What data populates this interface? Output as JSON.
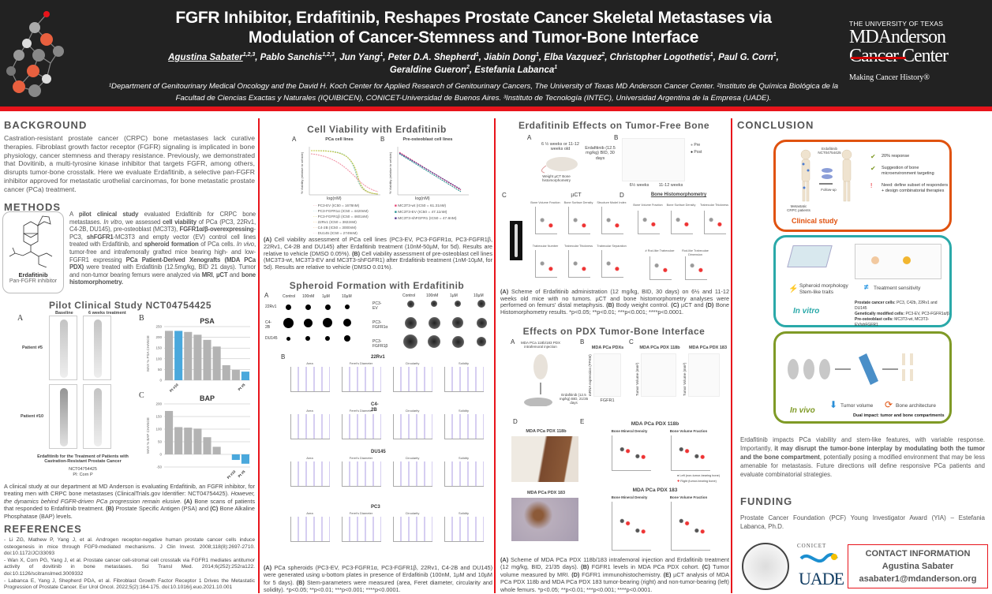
{
  "header": {
    "title_line1": "FGFR Inhibitor, Erdafitinib, Reshapes Prostate Cancer Skeletal Metastases via",
    "title_line2": "Modulation of Cancer-Stemness and Tumor-Bone Interface",
    "authors_line1": [
      {
        "name": "Agustina Sabater",
        "sup": "1,2,3"
      },
      {
        "name": "Pablo Sanchis",
        "sup": "1,2,3"
      },
      {
        "name": "Jun Yang",
        "sup": "1"
      },
      {
        "name": "Peter D.A. Shepherd",
        "sup": "1"
      },
      {
        "name": "Jiabin Dong",
        "sup": "1"
      },
      {
        "name": "Elba Vazquez",
        "sup": "2"
      },
      {
        "name": "Christopher Logothetis",
        "sup": "1"
      },
      {
        "name": "Paul G. Corn",
        "sup": "1"
      }
    ],
    "authors_line2": [
      {
        "name": "Geraldine Gueron",
        "sup": "2"
      },
      {
        "name": "Estefania Labanca",
        "sup": "1"
      }
    ],
    "affiliations": "¹Department of Genitourinary Medical Oncology and the David H. Koch Center for Applied Research of Genitourinary Cancers, The University of Texas MD Anderson Cancer Center. ²Instituto de Química Biológica de la Facultad de Ciencias Exactas y Naturales (IQUIBICEN), CONICET-Universidad de Buenos Aires. ³Instituto de Tecnología (INTEC), Universidad Argentina de la Empresa (UADE).",
    "logo": {
      "line1": "THE UNIVERSITY OF TEXAS",
      "line2": "MDAnderson",
      "line3": "Cancer Center",
      "tagline": "Making Cancer History®"
    },
    "accent_color": "#e8141b"
  },
  "background": {
    "heading": "BACKGROUND",
    "text": "Castration-resistant prostate cancer (CRPC) bone metastases lack curative therapies. Fibroblast growth factor receptor (FGFR) signaling is implicated in bone physiology, cancer stemness and therapy resistance. Previously, we demonstrated that Dovitinib, a multi-tyrosine kinase inhibitor that targets FGFR, among others, disrupts tumor-bone crosstalk. Here we evaluate Erdafitinib, a selective pan-FGFR inhibitor approved for metastatic urothelial carcinomas, for bone metastatic prostate cancer (PCa) treatment."
  },
  "methods": {
    "heading": "METHODS",
    "drug_name": "Erdafitinib",
    "drug_class": "Pan-FGFR inhibitor",
    "text_html": "A <b>pilot clinical study</b> evaluated Erdafitinib for CRPC bone metastases. <i>In vitro</i>, we assessed <b>cell viability</b> of PCa (PC3, 22Rv1, C4-2B, DU145), pre-osteoblast (MC3T3), <b>FGFR1α/β-overexpressing</b>-PC3, <b>shFGFR1</b>-MC3T3 and empty vector (EV) control cell lines treated with Erdafitinib, and <b>spheroid formation</b> of PCa cells. <i>In vivo</i>, tumor-free and intrafemorally grafted mice bearing high- and low-FGFR1 expressing <b>PCa Patient-Derived Xenografts (MDA PCa PDX)</b> were treated with Erdafitinib (12.5mg/kg, BID 21 days). Tumor and non-tumor bearing femurs were analyzed via <b>MRI</b>, <b>µCT</b> and <b>bone histomorphometry.</b>"
  },
  "pilot": {
    "title": "Pilot Clinical Study NCT04754425",
    "panel_a": "A",
    "panel_b": "B",
    "panel_c": "C",
    "col_baseline": "Baseline",
    "col_treat": "6 weeks treatment",
    "patient5": "Patient #5",
    "patient10": "Patient #10",
    "trial_title": "Erdafitinib for the Treatment of Patients with Castration-Resistant Prostate Cancer",
    "trial_id": "NCT04754425",
    "pi": "PI: Corn P",
    "caption_html": "A clinical study at our department at MD Anderson is evaluating Erdafitinib, an FGFR inhibitor, for treating men with CRPC bone metastases (ClinicalTrials.gov Identifier: NCT04754425). <i>However, the dynamics behind FGFR-driven PCa progression remain elusive.</i> <b>(A)</b> Bone scans of patients that responded to Erdafitinib treatment. <b>(B)</b> Prostate Specific Antigen (PSA) and <b>(C)</b> Bone Alkaline Phosphatase (BAP) levels."
  },
  "chart_data": [
    {
      "type": "bar",
      "title": "PSA",
      "ylabel": "MAX % PSA CHANGE",
      "ylim": [
        0,
        250
      ],
      "yticks": [
        0,
        50,
        100,
        150,
        200,
        250
      ],
      "grid": true,
      "values": [
        230,
        230,
        225,
        212,
        188,
        157,
        70,
        48,
        40
      ],
      "highlight": [
        false,
        true,
        false,
        false,
        false,
        false,
        false,
        false,
        true
      ],
      "labels": [
        "",
        "Pt #10",
        "",
        "",
        "",
        "",
        "",
        "",
        "Pt #5"
      ],
      "colors": {
        "default": "#b3b3b3",
        "highlight": "#4aa8dc"
      }
    },
    {
      "type": "bar",
      "title": "BAP",
      "ylabel": "MAX % BAP CHANGE",
      "ylim": [
        -50,
        200
      ],
      "yticks": [
        -50,
        0,
        50,
        100,
        150,
        200
      ],
      "grid": true,
      "values": [
        172,
        108,
        106,
        102,
        68,
        30,
        0,
        -22,
        -37
      ],
      "highlight": [
        false,
        false,
        false,
        false,
        false,
        false,
        false,
        true,
        true
      ],
      "labels": [
        "",
        "",
        "",
        "",
        "",
        "",
        "",
        "Pt #10",
        "Pt #5"
      ],
      "colors": {
        "default": "#b3b3b3",
        "highlight": "#4aa8dc"
      }
    }
  ],
  "references": {
    "heading": "REFERENCES",
    "items": [
      "- Li ZG, Mathew P, Yang J, et al. Androgen receptor-negative human prostate cancer cells induce osteogenesis in mice through FGF9-mediated mechanisms. J Clin Invest. 2008;118(8):2697-2710. doi:10.1172/JCI33093",
      "- Wan X, Corn PG, Yang J, et al. Prostate cancer cell-stromal cell crosstalk via FGFR1 mediates antitumor activity of dovitinib in bone metastases. Sci Transl Med. 2014;6(252):252ra122. doi:10.1126/scitranslmed.3009332",
      "- Labanca E, Yang J, Shepherd PDA, et al. Fibroblast Growth Factor Receptor 1 Drives the Metastatic Progression of Prostate Cancer. Eur Urol Oncol. 2022;5(2):164-175. doi:10.1016/j.euo.2021.10.001"
    ]
  },
  "viability": {
    "title": "Cell Viability with Erdafitinib",
    "a": "A",
    "b": "B",
    "a_title": "PCa cell lines",
    "b_title": "Pre-osteoblast cell lines",
    "ylabel": "% Viability (relative to vehicle)",
    "xlabel": "log(nM)",
    "legend_a": [
      "PC3-EV (IC50 = 1678nM)",
      "PC3-FGFR1α (IC50 = 4420nM)",
      "PC3-FGFR1β (IC50 = 4601nM)",
      "22Rv1 (IC50 = 3822nM)",
      "C4-2B (IC50 = 3000nM)",
      "DU145 (IC50 = 2749nM)"
    ],
    "legend_b": [
      "MC3T3-wt (IC50 = 61.31nM)",
      "MC3T3-EV (IC50 = 47.11nM)",
      "MC3T3-shFGFR1 (IC50 = 47.8nM)"
    ],
    "caption_html": "<b>(A)</b> Cell viability assessment of PCa cell lines (PC3-EV, PC3-FGFR1α, PC3-FGFR1β, 22Rv1, C4-2B and DU145) after Erdafitinib treatment (10nM-50µM, for 5d). Results are relative to vehicle (DMSO 0.05%). <b>(B)</b> Cell viability assessment of pre-osteoblast cell lines (MC3T3-wt, MC3T3-EV and MC3T3-shFGFR1) after Erdafitinib treatment (1nM-10µM, for 5d). Results are relative to vehicle (DMSO 0.01%)."
  },
  "spheroid": {
    "title": "Spheroid Formation with Erdafitinib",
    "a": "A",
    "b": "B",
    "doses": [
      "Control",
      "100nM",
      "1µM",
      "10µM"
    ],
    "rows_left": [
      "22Rv1",
      "C4-2B",
      "DU145"
    ],
    "rows_right": [
      "PC3-EV",
      "PC3-FGFR1α",
      "PC3-FGFR1β"
    ],
    "b_groups": [
      "22Rv1",
      "C4-2B",
      "DU145",
      "PC3"
    ],
    "b_params": [
      "Area",
      "Feret's Diameter",
      "Circularity",
      "Solidity"
    ],
    "caption_html": "<b>(A)</b> PCa spheroids (PC3-EV, PC3-FGFR1α, PC3-FGFR1β, 22Rv1, C4-2B and DU145) were generated using u-bottom plates in presence of Erdafitinib (100nM, 1µM and 10µM for 5 days). <b>(B)</b> Stem-parameters were measured (area, Feret diameter, circularity and solidity). *p&lt;0.05; **p&lt;0.01; ***p&lt;0.001; ****p&lt;0.0001."
  },
  "tumorfree": {
    "title": "Erdafitinib Effects on Tumor-Free Bone",
    "a": "A",
    "b": "B",
    "c": "C",
    "d": "D",
    "mice_age": "6 ½ weeks or 11-12 weeks old",
    "treatment": "Erdafitinib (12.5 mg/kg) BID, 30 days",
    "measures": "Weight µCT Bone histomorphometry",
    "b_legend": [
      "Pre",
      "Post"
    ],
    "b_groups": [
      "6½ weeks",
      "11-12 weeks"
    ],
    "c_title": "µCT",
    "d_title": "Bone Histomorphometry",
    "c_params": [
      "Bone Volume Fraction",
      "Bone Surface Density",
      "Structure Model Index",
      "Trabecular Number",
      "Trabecular Thickness",
      "Trabecular Separation"
    ],
    "d_params": [
      "Bone Volume Fraction",
      "Bone Surface Density",
      "Trabecular Thickness",
      "# Rod-like Trabeculae",
      "Rod-like Trabeculae Dimension"
    ],
    "caption_html": "<b>(A)</b> Scheme of Erdafitinib administration (12 mg/kg, BID, 30 days) on 6½ and 11-12 weeks old mice with no tumors. µCT and bone histomorphometry analyses were performed on femurs' distal metaphysis. <b>(B)</b> Body weight control. <b>(C)</b> µCT and <b>(D)</b> Bone Histomorphometry results. *p&lt;0.05; **p&lt;0.01; ***p&lt;0.001; ****p&lt;0.0001."
  },
  "pdx": {
    "title": "Effects on PDX Tumor-Bone Interface",
    "a": "A",
    "b": "B",
    "c": "C",
    "d": "D",
    "e": "E",
    "scheme_top": "MDA PCa 118b/183 PDX intrafemoral injection",
    "scheme_treat": "Erdafitinib (12.5 mg/kg) BID, 21/35 days",
    "b_title": "MDA PCa PDXs",
    "b_ylabel": "mRNA expression (FPKM)",
    "b_x": "FGFR1",
    "b_marks": [
      "118b",
      "183"
    ],
    "c_titles": [
      "MDA PCa PDX 118b",
      "MDA PCa PDX 183"
    ],
    "c_ylabel": "Tumor Volume (mm³)",
    "groups": [
      "Vehicle",
      "Erdafitinib"
    ],
    "d_titles": [
      "MDA PCa PDX 118b",
      "MDA PCa PDX 183"
    ],
    "e_titles": [
      "MDA PCa PDX 118b",
      "MDA PCa PDX 183"
    ],
    "e_params": [
      "Bone Mineral Density",
      "Bone Volume Fraction"
    ],
    "e_legend": [
      "Left (non-tumor-bearing bone)",
      "Right (tumor-bearing bone)"
    ],
    "caption_html": "<b>(A)</b> Scheme of MDA PCa PDX 118b/183 intrafemoral injection and Erdafitinib treatment (12 mg/kg, BID, 21/35 days). <b>(B)</b> FGFR1 levels in MDA PCa PDX cohort. <b>(C)</b> Tumor volume measured by MRI. <b>(D)</b> FGFR1 immunohistochemistry. <b>(E)</b> µCT analysis of MDA PCa PDX 118b and MDA PCa PDX 183 tumor-bearing (right) and non-tumor-bearing (left) whole femurs. *p&lt;0.05; **p&lt;0.01; ***p&lt;0.001; ****p&lt;0.0001."
  },
  "conclusion": {
    "heading": "CONCLUSION",
    "clinical": {
      "label": "Clinical study",
      "drug": "Erdafitinib NCT04754425",
      "follow": "Follow-up",
      "patients": "Metastatic CRPC patients",
      "points": [
        "20% response",
        "Suggestion of bone microenvironment targeting",
        "Need: define subset of responders + design combinatorial therapies"
      ],
      "color": "#e0520f"
    },
    "invitro": {
      "label": "In vitro",
      "p1": "Spheroid morphology",
      "p2": "Stem-like traits",
      "p3": "Treatment sensitivity",
      "lines": [
        [
          "Prostate cancer cells:",
          " PC3, C42b, 22Rv1 and DU145"
        ],
        [
          "Genetically modified cells:",
          " PC3-EV, PC3-FGFR1α/β"
        ],
        [
          "Pre-osteoblast cells:",
          " MC3T3-wt, MC3T3-EV/shFGFR1"
        ]
      ],
      "color": "#2aa9a9"
    },
    "invivo": {
      "label": "In vivo",
      "p1": "Tumor volume",
      "p2": "Bone architecture",
      "dual": "Dual impact: tumor and bone compartments",
      "color": "#7f9a26"
    },
    "text_html": "Erdafitinib impacts PCa viability and stem-like features, with variable response. Importantly, <b>it may disrupt the tumor-bone interplay by modulating both the tumor and the bone compartment</b>, potentially posing a modified environment that may be less amenable for metastasis. Future directions will define responsive PCa patients and evaluate combinatorial strategies."
  },
  "funding": {
    "heading": "FUNDING",
    "text": "Prostate Cancer Foundation (PCF) Young Investigator Award (YIA) – Estefania Labanca, Ph.D.",
    "logos": [
      "CONICET",
      "UADE"
    ]
  },
  "contact": {
    "heading": "CONTACT INFORMATION",
    "name": "Agustina Sabater",
    "email": "asabater1@mdanderson.org"
  }
}
